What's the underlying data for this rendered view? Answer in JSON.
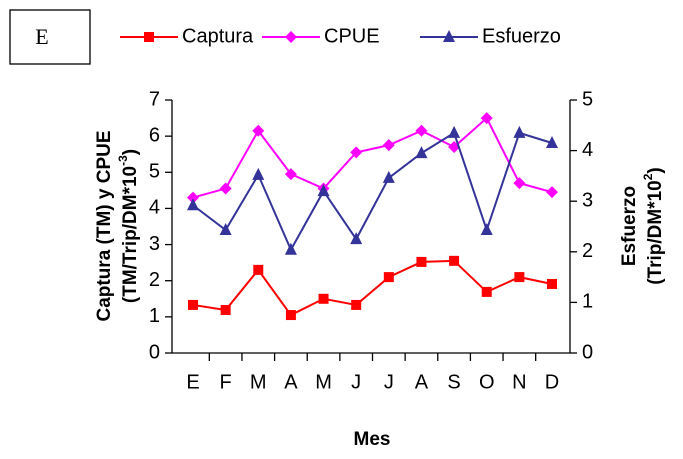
{
  "chart_data": {
    "type": "line",
    "panel_label": "E",
    "x_label": "Mes",
    "y_label": {
      "line1": "Captura (TM) y CPUE",
      "line2_base": "(TM/Trip/DM*10",
      "line2_sup": "-3",
      "line2_end": ")"
    },
    "y2_label": {
      "line1": "Esfuerzo",
      "line2_base": "(Trip/DM*10",
      "line2_sup": "2",
      "line2_end": ")"
    },
    "categories": [
      "E",
      "F",
      "M",
      "A",
      "M",
      "J",
      "J",
      "A",
      "S",
      "O",
      "N",
      "D"
    ],
    "series": [
      {
        "name": "Captura",
        "color": "#ff0000",
        "marker": "square",
        "values": [
          1.33,
          1.19,
          2.3,
          1.05,
          1.5,
          1.33,
          2.1,
          2.52,
          2.55,
          1.69,
          2.1,
          1.91
        ]
      },
      {
        "name": "CPUE",
        "color": "#ff00ff",
        "marker": "diamond",
        "values": [
          4.3,
          4.55,
          6.15,
          4.95,
          4.55,
          5.55,
          5.75,
          6.15,
          5.7,
          6.5,
          4.7,
          4.45
        ]
      },
      {
        "name": "Esfuerzo",
        "color": "#333399",
        "marker": "triangle",
        "axis": "y2",
        "values": [
          2.92,
          2.43,
          3.52,
          2.04,
          3.2,
          2.25,
          3.46,
          3.95,
          4.35,
          2.43,
          4.35,
          4.15
        ]
      }
    ],
    "ylim": [
      0,
      7
    ],
    "yticks": [
      0,
      1,
      2,
      3,
      4,
      5,
      6,
      7
    ],
    "y2lim": [
      0,
      5
    ],
    "y2ticks": [
      0,
      1,
      2,
      3,
      4,
      5
    ],
    "legend": "top"
  }
}
